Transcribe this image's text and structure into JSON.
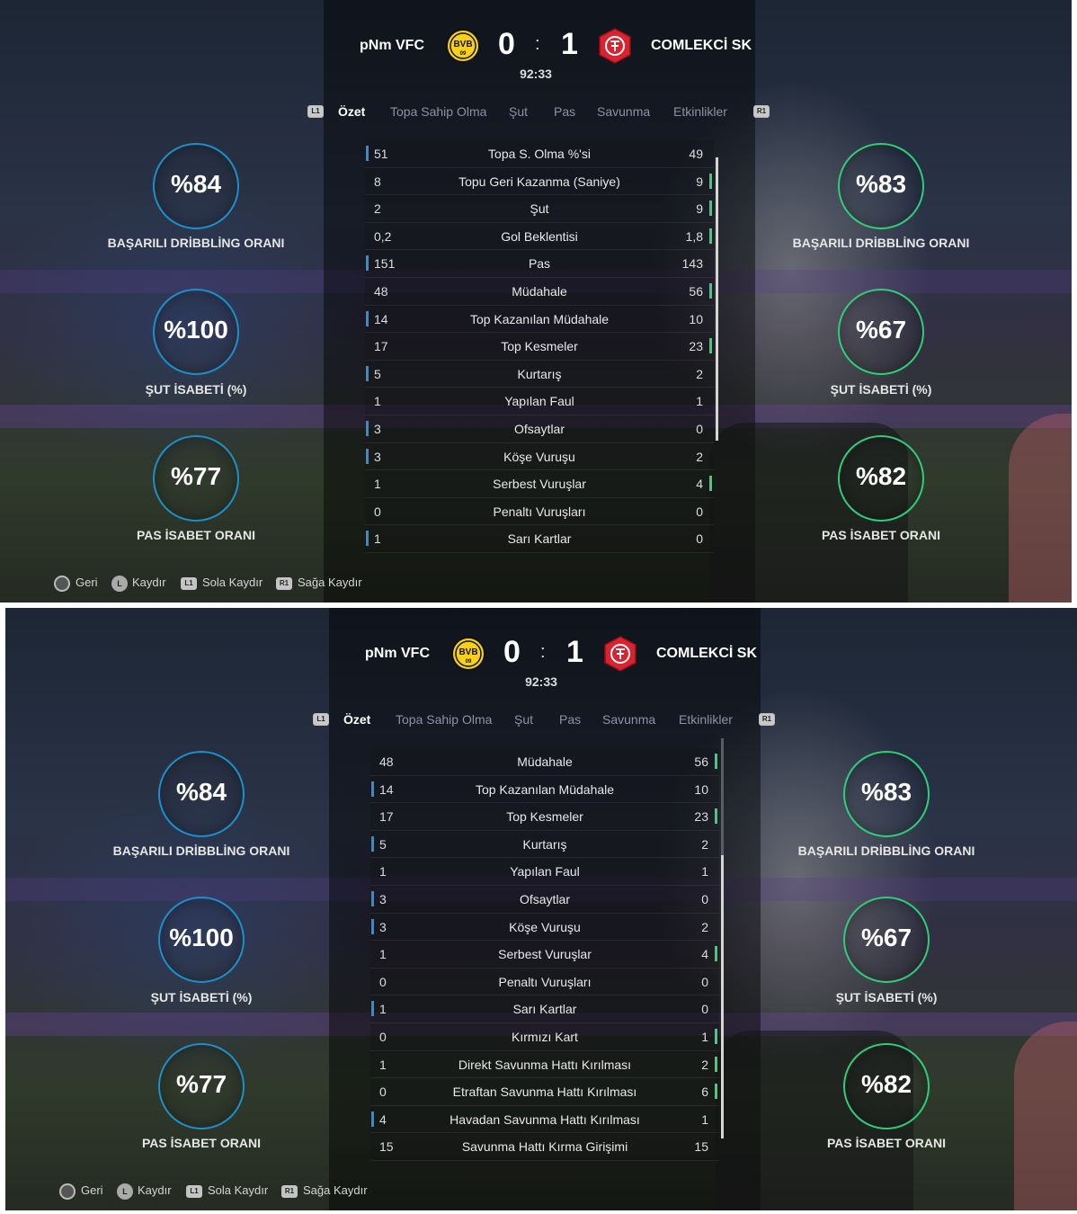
{
  "match": {
    "home_team": "pNm VFC",
    "away_team": "COMLEKCİ SK",
    "home_score": "0",
    "away_score": "1",
    "separator": ":",
    "clock": "92:33",
    "home_logo_text": "BVB 09",
    "colors": {
      "home_accent": "#1d8fc8",
      "away_accent": "#2fcd7a",
      "home_logo": "#f7d117",
      "away_logo": "#d92330"
    }
  },
  "tabs": {
    "l1": "L1",
    "r1": "R1",
    "items": [
      "Özet",
      "Topa Sahip Olma",
      "Şut",
      "Pas",
      "Savunma",
      "Etkinlikler"
    ],
    "active": "Özet"
  },
  "home_rings": [
    {
      "value": "%84",
      "label": "BAŞARILI DRİBBLİNG ORANI",
      "fraction": 0.84
    },
    {
      "value": "%100",
      "label": "ŞUT İSABETİ (%)",
      "fraction": 1.0
    },
    {
      "value": "%77",
      "label": "PAS İSABET ORANI",
      "fraction": 0.77
    }
  ],
  "away_rings": [
    {
      "value": "%83",
      "label": "BAŞARILI DRİBBLİNG ORANI",
      "fraction": 0.83
    },
    {
      "value": "%67",
      "label": "ŞUT İSABETİ (%)",
      "fraction": 0.67
    },
    {
      "value": "%82",
      "label": "PAS İSABET ORANI",
      "fraction": 0.82
    }
  ],
  "stats_view1": [
    {
      "home": "51",
      "name": "Topa S. Olma %'si",
      "away": "49",
      "lead": "home"
    },
    {
      "home": "8",
      "name": "Topu Geri Kazanma (Saniye)",
      "away": "9",
      "lead": "away"
    },
    {
      "home": "2",
      "name": "Şut",
      "away": "9",
      "lead": "away"
    },
    {
      "home": "0,2",
      "name": "Gol Beklentisi",
      "away": "1,8",
      "lead": "away"
    },
    {
      "home": "151",
      "name": "Pas",
      "away": "143",
      "lead": "home"
    },
    {
      "home": "48",
      "name": "Müdahale",
      "away": "56",
      "lead": "away"
    },
    {
      "home": "14",
      "name": "Top Kazanılan Müdahale",
      "away": "10",
      "lead": "home"
    },
    {
      "home": "17",
      "name": "Top Kesmeler",
      "away": "23",
      "lead": "away"
    },
    {
      "home": "5",
      "name": "Kurtarış",
      "away": "2",
      "lead": "home"
    },
    {
      "home": "1",
      "name": "Yapılan Faul",
      "away": "1",
      "lead": "none"
    },
    {
      "home": "3",
      "name": "Ofsaytlar",
      "away": "0",
      "lead": "home"
    },
    {
      "home": "3",
      "name": "Köşe Vuruşu",
      "away": "2",
      "lead": "home"
    },
    {
      "home": "1",
      "name": "Serbest Vuruşlar",
      "away": "4",
      "lead": "away"
    },
    {
      "home": "0",
      "name": "Penaltı Vuruşları",
      "away": "0",
      "lead": "none"
    },
    {
      "home": "1",
      "name": "Sarı Kartlar",
      "away": "0",
      "lead": "home"
    }
  ],
  "stats_view2": [
    {
      "home": "48",
      "name": "Müdahale",
      "away": "56",
      "lead": "away"
    },
    {
      "home": "14",
      "name": "Top Kazanılan Müdahale",
      "away": "10",
      "lead": "home"
    },
    {
      "home": "17",
      "name": "Top Kesmeler",
      "away": "23",
      "lead": "away"
    },
    {
      "home": "5",
      "name": "Kurtarış",
      "away": "2",
      "lead": "home"
    },
    {
      "home": "1",
      "name": "Yapılan Faul",
      "away": "1",
      "lead": "none"
    },
    {
      "home": "3",
      "name": "Ofsaytlar",
      "away": "0",
      "lead": "home"
    },
    {
      "home": "3",
      "name": "Köşe Vuruşu",
      "away": "2",
      "lead": "home"
    },
    {
      "home": "1",
      "name": "Serbest Vuruşlar",
      "away": "4",
      "lead": "away"
    },
    {
      "home": "0",
      "name": "Penaltı Vuruşları",
      "away": "0",
      "lead": "none"
    },
    {
      "home": "1",
      "name": "Sarı Kartlar",
      "away": "0",
      "lead": "home"
    },
    {
      "home": "0",
      "name": "Kırmızı Kart",
      "away": "1",
      "lead": "away"
    },
    {
      "home": "1",
      "name": "Direkt Savunma Hattı Kırılması",
      "away": "2",
      "lead": "away"
    },
    {
      "home": "0",
      "name": "Etraftan Savunma Hattı Kırılması",
      "away": "6",
      "lead": "away"
    },
    {
      "home": "4",
      "name": "Havadan Savunma Hattı Kırılması",
      "away": "1",
      "lead": "home"
    },
    {
      "home": "15",
      "name": "Savunma Hattı Kırma Girişimi",
      "away": "15",
      "lead": "none"
    }
  ],
  "footer": {
    "back": "Geri",
    "scroll": "Kaydır",
    "scroll_left": "Sola Kaydır",
    "scroll_right": "Sağa Kaydır",
    "l_stick": "L",
    "l1": "L1",
    "r1": "R1"
  }
}
